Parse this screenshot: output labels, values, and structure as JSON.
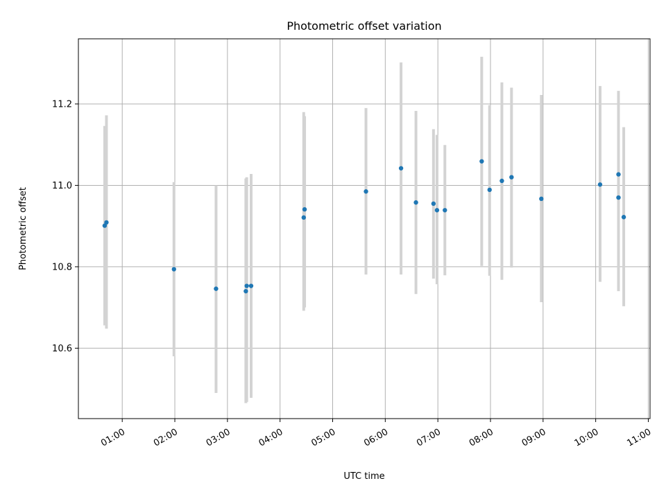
{
  "chart_data": {
    "type": "scatter",
    "title": "Photometric offset variation",
    "xlabel": "UTC time",
    "ylabel": "Photometric offset",
    "x_ticks": [
      "01:00",
      "02:00",
      "03:00",
      "04:00",
      "05:00",
      "06:00",
      "07:00",
      "08:00",
      "09:00",
      "10:00",
      "11:00"
    ],
    "y_ticks": [
      "10.6",
      "10.8",
      "11.0",
      "11.2"
    ],
    "xlim": [
      "00:10",
      "11:02"
    ],
    "ylim": [
      10.427,
      11.36
    ],
    "grid": true,
    "colors": {
      "point": "#1f77b4",
      "errorbar": "#d3d3d3"
    },
    "points": [
      {
        "x": "00:40",
        "y": 10.901,
        "err_low": 10.656,
        "err_high": 11.146
      },
      {
        "x": "00:42",
        "y": 10.909,
        "err_low": 10.648,
        "err_high": 11.172
      },
      {
        "x": "01:59",
        "y": 10.794,
        "err_low": 10.58,
        "err_high": 11.008
      },
      {
        "x": "02:47",
        "y": 10.746,
        "err_low": 10.49,
        "err_high": 11.0
      },
      {
        "x": "03:21",
        "y": 10.74,
        "err_low": 10.465,
        "err_high": 11.017
      },
      {
        "x": "03:22",
        "y": 10.753,
        "err_low": 10.468,
        "err_high": 11.02
      },
      {
        "x": "03:27",
        "y": 10.753,
        "err_low": 10.478,
        "err_high": 11.028
      },
      {
        "x": "04:27",
        "y": 10.921,
        "err_low": 10.692,
        "err_high": 11.18
      },
      {
        "x": "04:28",
        "y": 10.941,
        "err_low": 10.7,
        "err_high": 11.17
      },
      {
        "x": "05:38",
        "y": 10.985,
        "err_low": 10.781,
        "err_high": 11.19
      },
      {
        "x": "06:18",
        "y": 11.042,
        "err_low": 10.781,
        "err_high": 11.302
      },
      {
        "x": "06:35",
        "y": 10.958,
        "err_low": 10.733,
        "err_high": 11.183
      },
      {
        "x": "06:55",
        "y": 10.955,
        "err_low": 10.771,
        "err_high": 11.138
      },
      {
        "x": "06:59",
        "y": 10.939,
        "err_low": 10.757,
        "err_high": 11.124
      },
      {
        "x": "07:08",
        "y": 10.939,
        "err_low": 10.779,
        "err_high": 11.099
      },
      {
        "x": "07:50",
        "y": 11.059,
        "err_low": 10.802,
        "err_high": 11.316
      },
      {
        "x": "07:59",
        "y": 10.989,
        "err_low": 10.778,
        "err_high": 11.197
      },
      {
        "x": "08:13",
        "y": 11.011,
        "err_low": 10.768,
        "err_high": 11.253
      },
      {
        "x": "08:24",
        "y": 11.02,
        "err_low": 10.798,
        "err_high": 11.24
      },
      {
        "x": "08:58",
        "y": 10.967,
        "err_low": 10.713,
        "err_high": 11.222
      },
      {
        "x": "10:05",
        "y": 11.002,
        "err_low": 10.763,
        "err_high": 11.244
      },
      {
        "x": "10:26",
        "y": 10.97,
        "err_low": 10.74,
        "err_high": 11.2
      },
      {
        "x": "10:26",
        "y": 11.027,
        "err_low": 10.75,
        "err_high": 11.232
      },
      {
        "x": "10:32",
        "y": 10.922,
        "err_low": 10.703,
        "err_high": 11.143
      }
    ]
  }
}
